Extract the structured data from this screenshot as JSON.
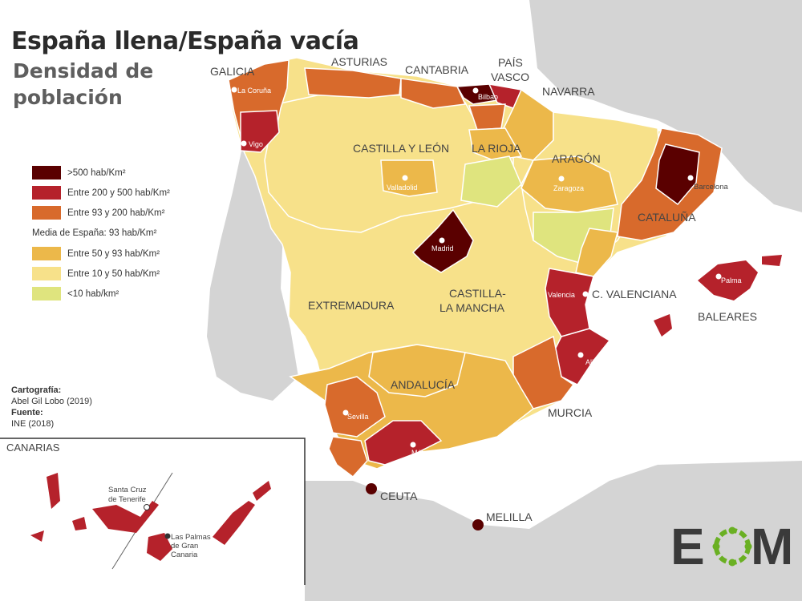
{
  "title": "España llena/España vacía",
  "subtitle": "Densidad de población",
  "colors": {
    "background": "#ffffff",
    "land_other": "#d4d4d4",
    "sea_border": "#ffffff",
    "c500": "#5a0000",
    "c200": "#b5222b",
    "c93": "#d86a2c",
    "c50": "#ecb84a",
    "c10": "#f7e18a",
    "c0": "#dfe47e"
  },
  "legend": {
    "items": [
      {
        "label": ">500 hab/Km²",
        "color": "#5a0000"
      },
      {
        "label": "Entre 200 y 500 hab/Km²",
        "color": "#b5222b"
      },
      {
        "label": "Entre 93 y 200 hab/Km²",
        "color": "#d86a2c"
      },
      {
        "label": "Media de España: 93 hab/Km²",
        "color": ""
      },
      {
        "label": "Entre 50 y 93 hab/Km²",
        "color": "#ecb84a"
      },
      {
        "label": "Entre 10 y 50 hab/Km²",
        "color": "#f7e18a"
      },
      {
        "label": "<10 hab/km²",
        "color": "#dfe47e"
      }
    ]
  },
  "credits": {
    "cartografia_label": "Cartografía:",
    "cartografia_value": "Abel Gil Lobo (2019)",
    "fuente_label": "Fuente:",
    "fuente_value": "INE (2018)"
  },
  "regions": {
    "galicia": "GALICIA",
    "asturias": "ASTURIAS",
    "cantabria": "CANTABRIA",
    "pais_vasco_1": "PAÍS",
    "pais_vasco_2": "VASCO",
    "navarra": "NAVARRA",
    "castilla_leon": "CASTILLA Y LEÓN",
    "la_rioja": "LA RIOJA",
    "aragon": "ARAGÓN",
    "cataluna": "CATALUÑA",
    "c_valenciana": "C. VALENCIANA",
    "baleares": "BALEARES",
    "extremadura": "EXTREMADURA",
    "castilla_mancha_1": "CASTILLA-",
    "castilla_mancha_2": "LA MANCHA",
    "andalucia": "ANDALUCÍA",
    "murcia": "MURCIA",
    "ceuta": "CEUTA",
    "melilla": "MELILLA",
    "canarias": "CANARIAS"
  },
  "cities": {
    "la_coruna": "La Coruña",
    "vigo": "Vigo",
    "bilbao": "Bilbao",
    "valladolid": "Valladolid",
    "zaragoza": "Zaragoza",
    "barcelona": "Barcelona",
    "madrid": "Madrid",
    "valencia": "Valencia",
    "palma": "Palma",
    "alicante": "Alicante",
    "sevilla": "Sevilla",
    "malaga": "Málaga",
    "santa_cruz_1": "Santa Cruz",
    "santa_cruz_2": "de Tenerife",
    "las_palmas_1": "Las Palmas",
    "las_palmas_2": "de Gran",
    "las_palmas_3": "Canaria"
  },
  "logo": {
    "text_e": "E",
    "text_m": "M",
    "ring_color": "#6ab023",
    "text_color": "#3a3a3a"
  }
}
